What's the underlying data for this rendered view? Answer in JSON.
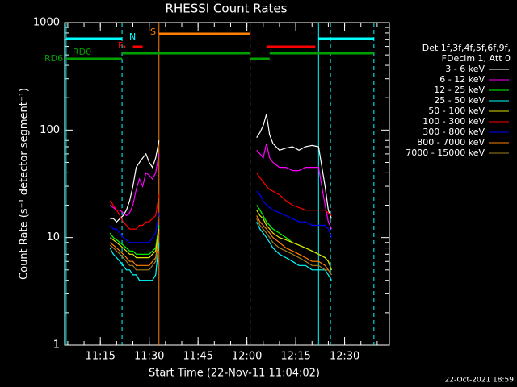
{
  "chart_data": {
    "type": "line",
    "title": "RHESSI Count Rates",
    "x_label": "Start Time (22-Nov-11 11:04:02)",
    "y_label": "Count Rate (s⁻¹ detector segment⁻¹)",
    "footer": "22-Oct-2021 18:59",
    "legend_header": [
      "Det 1f,3f,4f,5f,6f,9f,",
      "FDecim 1, Att 0"
    ],
    "y_scale": "log",
    "ylim": [
      1,
      1000
    ],
    "yticks": [
      1,
      10,
      100,
      1000
    ],
    "xlim": [
      "11:04:02",
      "12:43:45"
    ],
    "xticks": [
      "11:15",
      "11:30",
      "11:45",
      "12:00",
      "12:15",
      "12:30"
    ],
    "x": [
      "11:18",
      "11:19",
      "11:20",
      "11:21",
      "11:22",
      "11:23",
      "11:24",
      "11:25",
      "11:26",
      "11:27",
      "11:28",
      "11:29",
      "11:30",
      "11:31",
      "11:32",
      "11:33",
      "11:48",
      "12:03",
      "12:04",
      "12:05",
      "12:06",
      "12:07",
      "12:08",
      "12:10",
      "12:12",
      "12:14",
      "12:16",
      "12:18",
      "12:20",
      "12:22",
      "12:24",
      "12:25",
      "12:26"
    ],
    "series": [
      {
        "name": "3 - 6 keV",
        "color": "#ffffff",
        "values": [
          15,
          15,
          14,
          15,
          16,
          18,
          22,
          30,
          45,
          50,
          55,
          60,
          50,
          45,
          55,
          80,
          null,
          85,
          95,
          110,
          140,
          90,
          75,
          65,
          68,
          70,
          65,
          70,
          72,
          70,
          30,
          18,
          15
        ]
      },
      {
        "name": "6 - 12 keV",
        "color": "#ff00ff",
        "values": [
          20,
          19,
          18,
          18,
          17,
          16,
          17,
          20,
          28,
          35,
          30,
          40,
          38,
          35,
          40,
          60,
          null,
          65,
          60,
          55,
          75,
          55,
          50,
          45,
          45,
          42,
          42,
          45,
          45,
          45,
          20,
          14,
          12
        ]
      },
      {
        "name": "12 - 25 keV",
        "color": "#00ff00",
        "values": [
          11,
          10,
          9.5,
          9,
          8.5,
          8,
          7.5,
          7.5,
          7,
          7,
          7,
          7,
          7,
          7.5,
          8,
          13,
          null,
          20,
          18,
          16,
          14,
          13,
          12,
          11,
          10,
          9,
          8.5,
          8,
          7.5,
          7,
          6.5,
          6,
          5
        ]
      },
      {
        "name": "25 - 50 keV",
        "color": "#00ffff",
        "values": [
          8,
          7,
          6.5,
          6,
          5.5,
          5,
          5,
          4.5,
          4.5,
          4,
          4,
          4,
          4,
          4,
          4.5,
          9,
          null,
          14,
          12,
          11,
          10,
          9,
          8,
          7,
          6.5,
          6,
          5.5,
          5.5,
          5,
          5,
          5,
          4.5,
          4
        ]
      },
      {
        "name": "50 - 100 keV",
        "color": "#e0e000",
        "values": [
          10,
          9.5,
          9,
          8.5,
          8,
          7.5,
          7,
          7,
          6.5,
          6.5,
          6.5,
          6.5,
          6.5,
          7,
          7.5,
          12,
          null,
          18,
          16,
          15,
          13,
          12,
          11,
          10,
          9.5,
          9,
          8.5,
          8,
          7.5,
          7,
          6.5,
          6,
          5
        ]
      },
      {
        "name": "100 - 300 keV",
        "color": "#ff0000",
        "values": [
          22,
          20,
          18,
          16,
          14,
          13,
          12,
          12,
          12,
          13,
          13,
          14,
          14,
          15,
          16,
          25,
          null,
          40,
          36,
          33,
          30,
          28,
          27,
          25,
          22,
          20,
          19,
          18,
          18,
          18,
          18,
          17,
          16
        ]
      },
      {
        "name": "300 - 800 keV",
        "color": "#0000ff",
        "values": [
          13,
          12,
          12,
          11,
          10,
          9.5,
          9,
          9,
          9,
          9,
          9,
          9,
          9,
          10,
          11,
          17,
          null,
          27,
          25,
          22,
          20,
          19,
          18,
          17,
          16,
          15,
          14,
          14,
          13,
          13,
          13,
          12,
          10
        ]
      },
      {
        "name": "800 - 7000 keV",
        "color": "#ff8000",
        "values": [
          9,
          8.5,
          8,
          7.5,
          7,
          6.5,
          6,
          6,
          5.5,
          5.5,
          5.5,
          5.5,
          5.5,
          6,
          6.5,
          11,
          null,
          16,
          14,
          13,
          12,
          11,
          10,
          9,
          8,
          7.5,
          7,
          6.5,
          6,
          6,
          5.5,
          5,
          4.5
        ]
      },
      {
        "name": "7000 - 15000 keV",
        "color": "#a08020",
        "values": [
          8.5,
          8,
          7.5,
          7,
          6.5,
          6,
          5.5,
          5.5,
          5,
          5,
          5,
          5,
          5,
          5.5,
          6,
          10,
          null,
          15,
          13,
          12,
          11,
          10,
          9,
          8,
          7.5,
          7,
          6.5,
          6,
          5.5,
          5.5,
          5,
          5,
          4.5
        ]
      }
    ],
    "markers": [
      {
        "time": "11:04:30",
        "color": "#00ffff",
        "dashed": false
      },
      {
        "time": "11:21:40",
        "color": "#00ffff",
        "dashed": true
      },
      {
        "time": "11:33:00",
        "color": "#ff8000",
        "dashed": false
      },
      {
        "time": "12:01:00",
        "color": "#ff8000",
        "dashed": true
      },
      {
        "time": "12:22:00",
        "color": "#00ffff",
        "dashed": false
      },
      {
        "time": "12:25:40",
        "color": "#00ffff",
        "dashed": true
      },
      {
        "time": "12:39:00",
        "color": "#00ffff",
        "dashed": true
      }
    ],
    "flags": [
      {
        "label": "N",
        "color": "#00ffff",
        "spans": [
          [
            "11:04:30",
            "11:21:40"
          ],
          [
            "12:22:00",
            "12:39:00"
          ]
        ]
      },
      {
        "label": "S",
        "color": "#ff8000",
        "spans": [
          [
            "11:33:00",
            "12:01:00"
          ]
        ]
      },
      {
        "label": "F",
        "color": "#ff0000",
        "spans": [
          [
            "11:22:00",
            "11:22:40"
          ],
          [
            "11:25:00",
            "11:28:00"
          ],
          [
            "12:06:00",
            "12:21:00"
          ]
        ]
      },
      {
        "label": "RD0",
        "color": "#00a000",
        "spans": [
          [
            "11:21:40",
            "12:01:00"
          ],
          [
            "12:07:00",
            "12:39:00"
          ]
        ]
      },
      {
        "label": "RD6",
        "color": "#00a000",
        "spans": [
          [
            "11:04:30",
            "11:21:40"
          ],
          [
            "12:01:00",
            "12:07:00"
          ]
        ]
      }
    ]
  }
}
